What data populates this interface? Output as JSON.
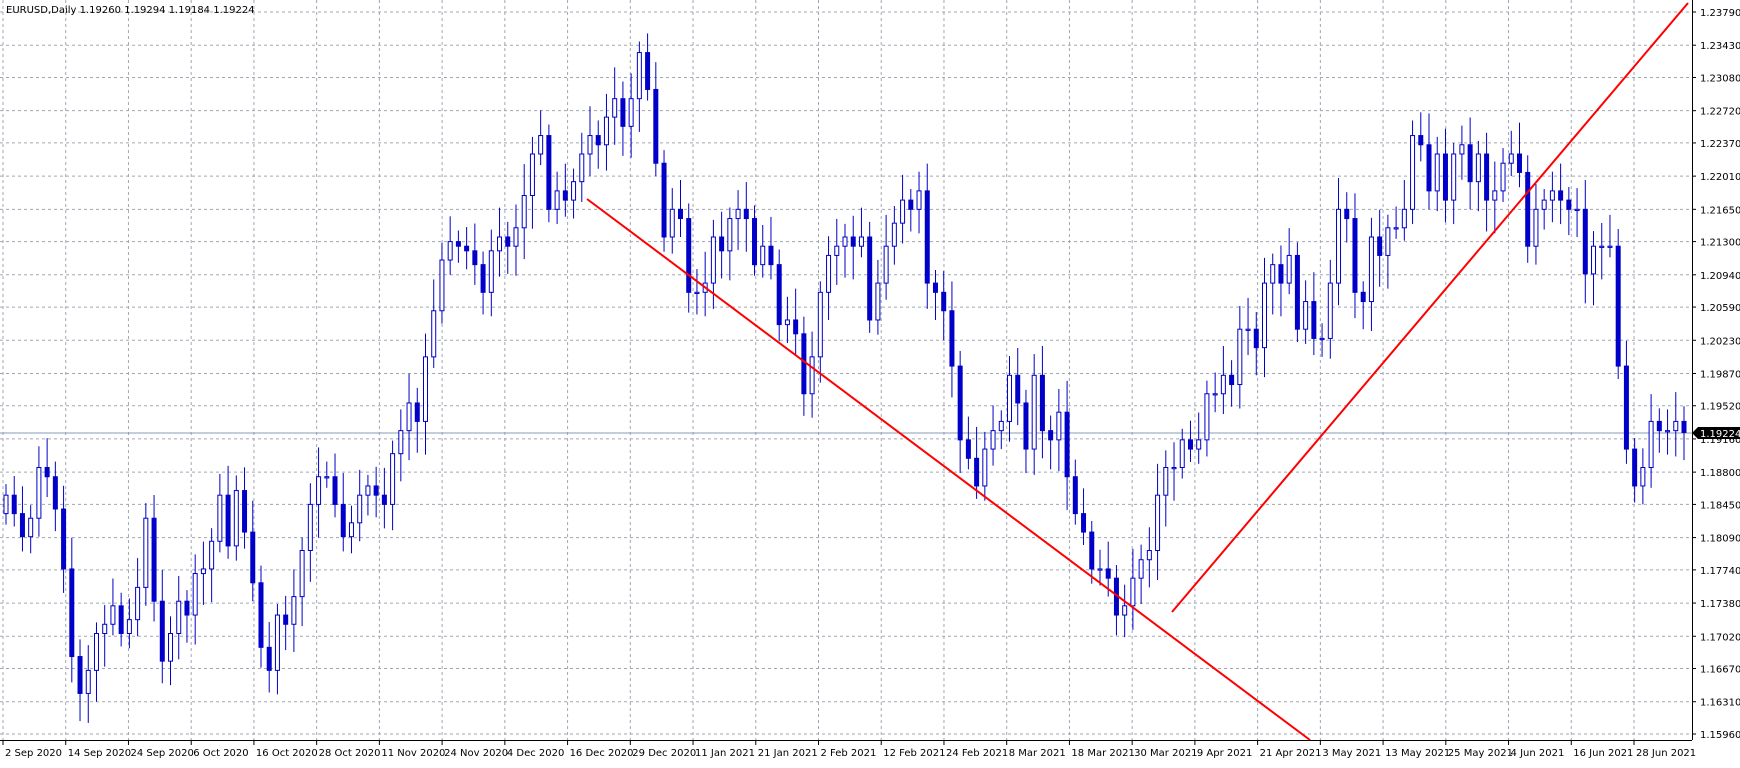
{
  "header": {
    "symbol_timeframe": "EURUSD,Daily",
    "ohlc": "1.19260 1.19294 1.19184 1.19224"
  },
  "colors": {
    "background": "#ffffff",
    "grid": "#a0a7b3",
    "candle": "#0000c8",
    "doji": "#19b419",
    "trendline": "#ff0000",
    "price_line": "#8a9bb5",
    "price_tag_bg": "#000000",
    "price_tag_text": "#ffffff"
  },
  "chart_data": {
    "type": "candlestick",
    "symbol": "EURUSD",
    "timeframe": "Daily",
    "y_axis_labels": [
      "1.23790",
      "1.23430",
      "1.23080",
      "1.22720",
      "1.22370",
      "1.22010",
      "1.21650",
      "1.21300",
      "1.20940",
      "1.20590",
      "1.20230",
      "1.19870",
      "1.19520",
      "1.19160",
      "1.18800",
      "1.18450",
      "1.18090",
      "1.17740",
      "1.17380",
      "1.17020",
      "1.16670",
      "1.16310",
      "1.15960"
    ],
    "ylim": [
      1.1596,
      1.2379
    ],
    "x_axis_labels": [
      "2 Sep 2020",
      "14 Sep 2020",
      "24 Sep 2020",
      "6 Oct 2020",
      "16 Oct 2020",
      "28 Oct 2020",
      "11 Nov 2020",
      "24 Nov 2020",
      "4 Dec 2020",
      "16 Dec 2020",
      "29 Dec 2020",
      "11 Jan 2021",
      "21 Jan 2021",
      "2 Feb 2021",
      "12 Feb 2021",
      "24 Feb 2021",
      "8 Mar 2021",
      "18 Mar 2021",
      "30 Mar 2021",
      "9 Apr 2021",
      "21 Apr 2021",
      "3 May 2021",
      "13 May 2021",
      "25 May 2021",
      "4 Jun 2021",
      "16 Jun 2021",
      "28 Jun 2021"
    ],
    "current_price": "1.19224",
    "closes": [
      1.1855,
      1.1835,
      1.181,
      1.183,
      1.1885,
      1.1875,
      1.184,
      1.1775,
      1.168,
      1.164,
      1.1665,
      1.1705,
      1.1715,
      1.1735,
      1.1705,
      1.172,
      1.1755,
      1.183,
      1.174,
      1.1675,
      1.1705,
      1.174,
      1.1725,
      1.177,
      1.1775,
      1.1805,
      1.1855,
      1.18,
      1.186,
      1.1815,
      1.176,
      1.169,
      1.1665,
      1.1725,
      1.1715,
      1.1745,
      1.1795,
      1.1845,
      1.1875,
      1.1875,
      1.1845,
      1.181,
      1.1825,
      1.1855,
      1.1865,
      1.1855,
      1.1845,
      1.19,
      1.1925,
      1.1955,
      1.1935,
      1.2005,
      1.2055,
      1.211,
      1.213,
      1.2125,
      1.212,
      1.2105,
      1.2075,
      1.212,
      1.2135,
      1.2125,
      1.2145,
      1.218,
      1.2225,
      1.2245,
      1.2165,
      1.2185,
      1.2175,
      1.2195,
      1.2225,
      1.2245,
      1.2235,
      1.2265,
      1.2285,
      1.2255,
      1.2285,
      1.2335,
      1.2295,
      1.2215,
      1.2135,
      1.2165,
      1.2155,
      1.2075,
      1.2075,
      1.2085,
      1.2135,
      1.212,
      1.2155,
      1.2165,
      1.2155,
      1.2105,
      1.2125,
      1.2105,
      1.204,
      1.2045,
      1.203,
      1.1965,
      1.2005,
      1.2075,
      1.2115,
      1.2125,
      1.2135,
      1.2125,
      1.2135,
      1.2045,
      1.2085,
      1.2125,
      1.215,
      1.2175,
      1.2165,
      1.2185,
      1.2085,
      1.2075,
      1.2055,
      1.1995,
      1.1915,
      1.1895,
      1.1865,
      1.1905,
      1.1925,
      1.1935,
      1.1985,
      1.1955,
      1.1905,
      1.1985,
      1.1925,
      1.1915,
      1.1945,
      1.1875,
      1.1835,
      1.1815,
      1.1775,
      1.1775,
      1.1765,
      1.1725,
      1.1735,
      1.1765,
      1.1785,
      1.1795,
      1.1855,
      1.1885,
      1.1885,
      1.1915,
      1.1905,
      1.1915,
      1.1965,
      1.1965,
      1.1985,
      1.1975,
      1.2035,
      1.2035,
      1.2015,
      1.2085,
      1.2105,
      1.2085,
      1.2115,
      1.2035,
      1.2065,
      1.2025,
      1.2025,
      1.2085,
      1.2165,
      1.2155,
      1.2075,
      1.2065,
      1.2135,
      1.2115,
      1.2145,
      1.2145,
      1.2165,
      1.2245,
      1.2235,
      1.2185,
      1.2225,
      1.2175,
      1.2225,
      1.2235,
      1.2195,
      1.2225,
      1.2175,
      1.2185,
      1.2215,
      1.2225,
      1.2205,
      1.2125,
      1.2165,
      1.2175,
      1.2185,
      1.2175,
      1.2165,
      1.2165,
      1.2095,
      1.2125,
      1.2125,
      1.2125,
      1.1995,
      1.1905,
      1.1865,
      1.1885,
      1.1935,
      1.1925,
      1.1925,
      1.1935,
      1.1923
    ]
  }
}
